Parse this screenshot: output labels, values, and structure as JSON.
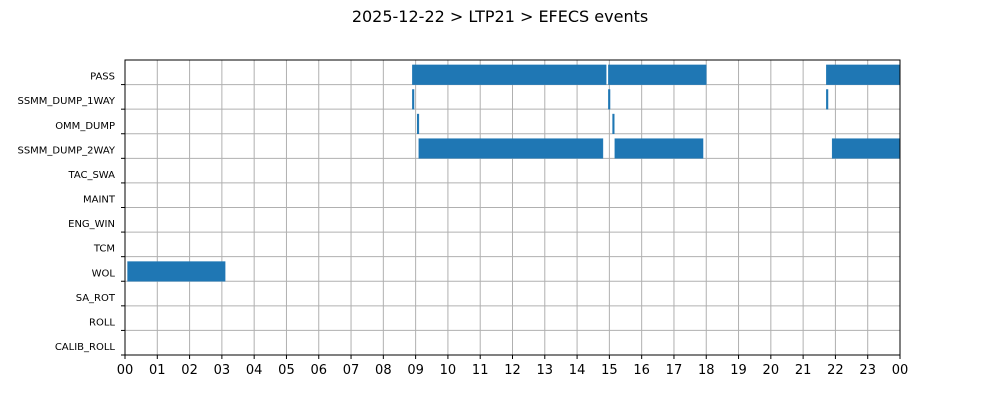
{
  "chart_data": {
    "type": "gantt",
    "title": "2025-12-22 > LTP21 > EFECS events",
    "x_unit": "hour",
    "xlim": [
      0,
      24
    ],
    "x_tick_labels": [
      "00",
      "01",
      "02",
      "03",
      "04",
      "05",
      "06",
      "07",
      "08",
      "09",
      "10",
      "11",
      "12",
      "13",
      "14",
      "15",
      "16",
      "17",
      "18",
      "19",
      "20",
      "21",
      "22",
      "23",
      "00"
    ],
    "rows": [
      "PASS",
      "SSMM_DUMP_1WAY",
      "OMM_DUMP",
      "SSMM_DUMP_2WAY",
      "TAC_SWA",
      "MAINT",
      "ENG_WIN",
      "TCM",
      "WOL",
      "SA_ROT",
      "ROLL",
      "CALIB_ROLL"
    ],
    "grid": true,
    "bar_color": "#1f77b4",
    "events": [
      {
        "row": "PASS",
        "start": 8.9,
        "end": 14.9
      },
      {
        "row": "PASS",
        "start": 14.97,
        "end": 18.0
      },
      {
        "row": "PASS",
        "start": 21.72,
        "end": 24.0
      },
      {
        "row": "SSMM_DUMP_1WAY",
        "start": 8.9,
        "end": 8.95
      },
      {
        "row": "SSMM_DUMP_1WAY",
        "start": 14.97,
        "end": 15.02
      },
      {
        "row": "SSMM_DUMP_1WAY",
        "start": 21.72,
        "end": 21.77
      },
      {
        "row": "OMM_DUMP",
        "start": 9.05,
        "end": 9.1
      },
      {
        "row": "OMM_DUMP",
        "start": 15.1,
        "end": 15.15
      },
      {
        "row": "SSMM_DUMP_2WAY",
        "start": 9.1,
        "end": 14.8
      },
      {
        "row": "SSMM_DUMP_2WAY",
        "start": 15.17,
        "end": 17.9
      },
      {
        "row": "SSMM_DUMP_2WAY",
        "start": 21.9,
        "end": 24.0
      },
      {
        "row": "WOL",
        "start": 0.08,
        "end": 3.1
      }
    ]
  }
}
